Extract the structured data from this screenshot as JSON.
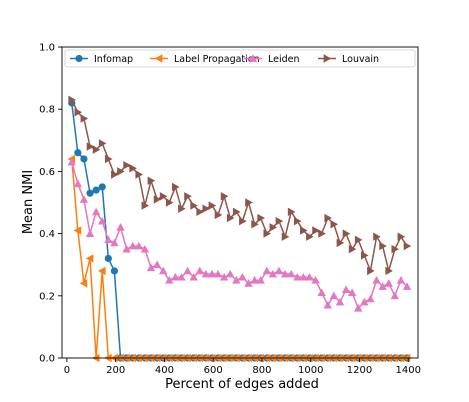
{
  "chart_data": {
    "type": "line",
    "xlabel": "Percent of edges added",
    "ylabel": "Mean NMI",
    "xlim": [
      -20,
      1440
    ],
    "ylim": [
      0,
      1
    ],
    "xticks": [
      0,
      200,
      400,
      600,
      800,
      1000,
      1200,
      1400
    ],
    "yticks": [
      0.0,
      0.2,
      0.4,
      0.6,
      0.8,
      1.0
    ],
    "legend_position": "top",
    "grid": false,
    "series": [
      {
        "name": "Infomap",
        "color": "#1f77b4",
        "marker": "circle",
        "x": [
          20,
          45,
          70,
          95,
          120,
          145,
          170,
          195,
          220,
          245,
          270,
          295,
          320,
          345,
          370,
          395,
          420,
          445,
          470,
          495,
          520,
          545,
          570,
          595,
          620,
          645,
          670,
          695,
          720,
          745,
          770,
          795,
          820,
          845,
          870,
          895,
          920,
          945,
          970,
          995,
          1020,
          1045,
          1070,
          1095,
          1120,
          1145,
          1170,
          1195,
          1220,
          1245,
          1270,
          1295,
          1320,
          1345,
          1370,
          1395
        ],
        "y": [
          0.82,
          0.66,
          0.64,
          0.53,
          0.54,
          0.55,
          0.32,
          0.28,
          0.0,
          0.0,
          0.0,
          0.0,
          0.0,
          0.0,
          0.0,
          0.0,
          0.0,
          0.0,
          0.0,
          0.0,
          0.0,
          0.0,
          0.0,
          0.0,
          0.0,
          0.0,
          0.0,
          0.0,
          0.0,
          0.0,
          0.0,
          0.0,
          0.0,
          0.0,
          0.0,
          0.0,
          0.0,
          0.0,
          0.0,
          0.0,
          0.0,
          0.0,
          0.0,
          0.0,
          0.0,
          0.0,
          0.0,
          0.0,
          0.0,
          0.0,
          0.0,
          0.0,
          0.0,
          0.0,
          0.0,
          0.0
        ]
      },
      {
        "name": "Label Propagation",
        "color": "#ff7f0e",
        "marker": "triangle-left",
        "x": [
          20,
          45,
          70,
          95,
          120,
          145,
          170,
          195,
          220,
          245,
          270,
          295,
          320,
          345,
          370,
          395,
          420,
          445,
          470,
          495,
          520,
          545,
          570,
          595,
          620,
          645,
          670,
          695,
          720,
          745,
          770,
          795,
          820,
          845,
          870,
          895,
          920,
          945,
          970,
          995,
          1020,
          1045,
          1070,
          1095,
          1120,
          1145,
          1170,
          1195,
          1220,
          1245,
          1270,
          1295,
          1320,
          1345,
          1370,
          1395
        ],
        "y": [
          0.64,
          0.41,
          0.24,
          0.32,
          0.0,
          0.28,
          0.0,
          0.0,
          0.0,
          0.0,
          0.0,
          0.0,
          0.0,
          0.0,
          0.0,
          0.0,
          0.0,
          0.0,
          0.0,
          0.0,
          0.0,
          0.0,
          0.0,
          0.0,
          0.0,
          0.0,
          0.0,
          0.0,
          0.0,
          0.0,
          0.0,
          0.0,
          0.0,
          0.0,
          0.0,
          0.0,
          0.0,
          0.0,
          0.0,
          0.0,
          0.0,
          0.0,
          0.0,
          0.0,
          0.0,
          0.0,
          0.0,
          0.0,
          0.0,
          0.0,
          0.0,
          0.0,
          0.0,
          0.0,
          0.0,
          0.0
        ]
      },
      {
        "name": "Leiden",
        "color": "#e377c2",
        "marker": "triangle-up",
        "x": [
          20,
          45,
          70,
          95,
          120,
          145,
          170,
          195,
          220,
          245,
          270,
          295,
          320,
          345,
          370,
          395,
          420,
          445,
          470,
          495,
          520,
          545,
          570,
          595,
          620,
          645,
          670,
          695,
          720,
          745,
          770,
          795,
          820,
          845,
          870,
          895,
          920,
          945,
          970,
          995,
          1020,
          1045,
          1070,
          1095,
          1120,
          1145,
          1170,
          1195,
          1220,
          1245,
          1270,
          1295,
          1320,
          1345,
          1370,
          1395
        ],
        "y": [
          0.63,
          0.56,
          0.51,
          0.4,
          0.47,
          0.44,
          0.38,
          0.37,
          0.42,
          0.35,
          0.36,
          0.36,
          0.35,
          0.29,
          0.3,
          0.28,
          0.25,
          0.26,
          0.26,
          0.28,
          0.26,
          0.28,
          0.27,
          0.27,
          0.27,
          0.26,
          0.27,
          0.25,
          0.26,
          0.24,
          0.25,
          0.25,
          0.28,
          0.27,
          0.28,
          0.27,
          0.27,
          0.26,
          0.26,
          0.26,
          0.25,
          0.21,
          0.17,
          0.2,
          0.18,
          0.22,
          0.21,
          0.16,
          0.18,
          0.19,
          0.25,
          0.23,
          0.24,
          0.2,
          0.25,
          0.23
        ]
      },
      {
        "name": "Louvain",
        "color": "#8c564b",
        "marker": "triangle-right",
        "x": [
          20,
          45,
          70,
          95,
          120,
          145,
          170,
          195,
          220,
          245,
          270,
          295,
          320,
          345,
          370,
          395,
          420,
          445,
          470,
          495,
          520,
          545,
          570,
          595,
          620,
          645,
          670,
          695,
          720,
          745,
          770,
          795,
          820,
          845,
          870,
          895,
          920,
          945,
          970,
          995,
          1020,
          1045,
          1070,
          1095,
          1120,
          1145,
          1170,
          1195,
          1220,
          1245,
          1270,
          1295,
          1320,
          1345,
          1370,
          1395
        ],
        "y": [
          0.83,
          0.79,
          0.77,
          0.68,
          0.67,
          0.69,
          0.64,
          0.59,
          0.6,
          0.62,
          0.61,
          0.59,
          0.49,
          0.57,
          0.51,
          0.52,
          0.5,
          0.55,
          0.48,
          0.52,
          0.49,
          0.47,
          0.48,
          0.49,
          0.46,
          0.52,
          0.45,
          0.47,
          0.44,
          0.5,
          0.43,
          0.45,
          0.4,
          0.42,
          0.44,
          0.39,
          0.47,
          0.44,
          0.41,
          0.39,
          0.41,
          0.4,
          0.45,
          0.43,
          0.37,
          0.4,
          0.35,
          0.38,
          0.33,
          0.28,
          0.39,
          0.36,
          0.28,
          0.35,
          0.39,
          0.36
        ]
      }
    ]
  }
}
